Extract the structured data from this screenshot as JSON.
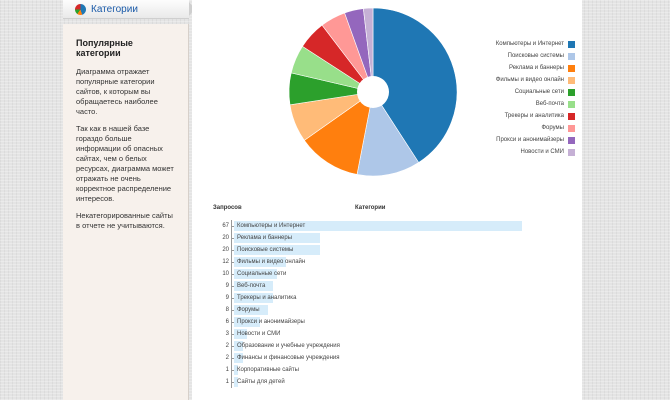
{
  "tab": {
    "label": "Категории",
    "icon": "pie-chart-icon"
  },
  "sidebar": {
    "title": "Популярные категории",
    "p1": "Диаграмма отражает популярные категории сайтов, к которым вы обращаетесь наиболее часто.",
    "p2": "Так как в нашей базе гораздо больше информации об опасных сайтах, чем о белых ресурсах, диаграмма может отражать не очень корректное распределение интересов.",
    "p3": "Некатегорированные сайты в отчете не учитываются."
  },
  "table": {
    "col_requests": "Запросов",
    "col_category": "Категории"
  },
  "chart_data": [
    {
      "type": "pie",
      "labels": [
        "Компьютеры и Интернет",
        "Поисковые системы",
        "Реклама и баннеры",
        "Фильмы и видео онлайн",
        "Социальные сети",
        "Веб-почта",
        "Трекеры и аналитика",
        "Форумы",
        "Прокси и анонимайзеры",
        "Новости и СМИ"
      ],
      "values": [
        67,
        20,
        20,
        12,
        10,
        9,
        9,
        8,
        6,
        3
      ],
      "colors": [
        "#1f77b4",
        "#aec7e8",
        "#ff7f0e",
        "#ffbb78",
        "#2ca02c",
        "#98df8a",
        "#d62728",
        "#ff9896",
        "#9467bd",
        "#c5b0d5"
      ],
      "legend_position": "right"
    },
    {
      "type": "bar",
      "categories": [
        "Компьютеры и Интернет",
        "Реклама и баннеры",
        "Поисковые системы",
        "Фильмы и видео онлайн",
        "Социальные сети",
        "Веб-почта",
        "Трекеры и аналитика",
        "Форумы",
        "Прокси и анонимайзеры",
        "Новости и СМИ",
        "Образование и учебные учреждения",
        "Финансы и финансовые учреждения",
        "Корпоративные сайты",
        "Сайты для детей"
      ],
      "values": [
        67,
        20,
        20,
        12,
        10,
        9,
        9,
        8,
        6,
        3,
        2,
        2,
        1,
        1
      ],
      "color": "#d6ecfa"
    }
  ]
}
